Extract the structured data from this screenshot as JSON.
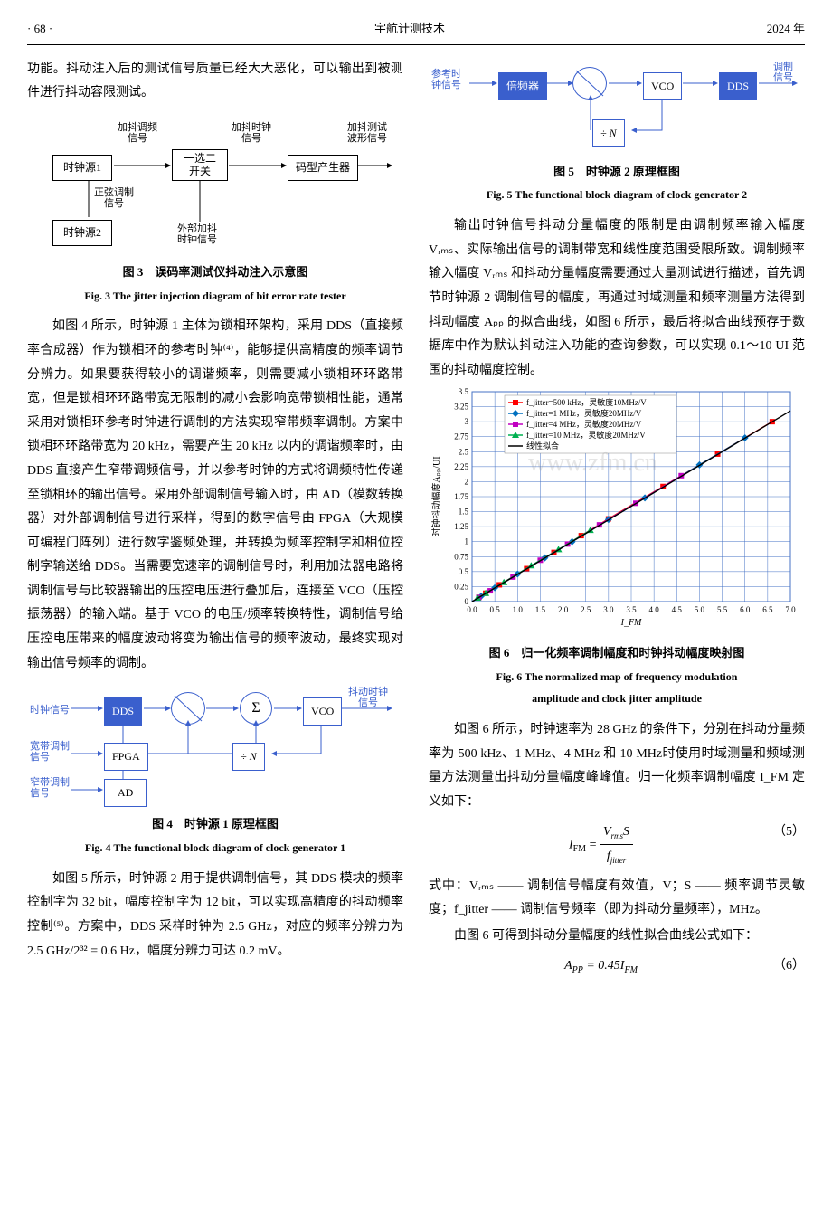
{
  "header": {
    "page": "· 68 ·",
    "journal": "宇航计测技术",
    "year": "2024 年"
  },
  "leftCol": {
    "p1": "功能。抖动注入后的测试信号质量已经大大恶化，可以输出到被测件进行抖动容限测试。",
    "fig3": {
      "boxes": {
        "clk1": "时钟源1",
        "switch": "一选二\n开关",
        "coder": "码型产生器",
        "clk2": "时钟源2"
      },
      "labels": {
        "l1": "加抖调频\n信号",
        "l2": "加抖时钟\n信号",
        "l3": "加抖测试\n波形信号",
        "l4": "正弦调制\n信号",
        "l5": "外部加抖\n时钟信号"
      },
      "cap_cn": "图 3　误码率测试仪抖动注入示意图",
      "cap_en": "Fig. 3  The jitter injection diagram of bit error rate tester"
    },
    "p2": "如图 4 所示，时钟源 1 主体为锁相环架构，采用 DDS（直接频率合成器）作为锁相环的参考时钟⁽⁴⁾，能够提供高精度的频率调节分辨力。如果要获得较小的调谐频率，则需要减小锁相环环路带宽，但是锁相环环路带宽无限制的减小会影响宽带锁相性能，通常采用对锁相环参考时钟进行调制的方法实现窄带频率调制。方案中锁相环环路带宽为 20 kHz，需要产生 20 kHz 以内的调谐频率时，由 DDS 直接产生窄带调频信号，并以参考时钟的方式将调频特性传递至锁相环的输出信号。采用外部调制信号输入时，由 AD（模数转换器）对外部调制信号进行采样，得到的数字信号由 FPGA（大规模可编程门阵列）进行数字鉴频处理，并转换为频率控制字和相位控制字输送给 DDS。当需要宽速率的调制信号时，利用加法器电路将调制信号与比较器输出的压控电压进行叠加后，连接至 VCO（压控振荡器）的输入端。基于 VCO 的电压/频率转换特性，调制信号给压控电压带来的幅度波动将变为输出信号的频率波动，最终实现对输出信号频率的调制。",
    "fig4": {
      "labels": {
        "clk": "时钟信号",
        "wb": "宽带调制\n信号",
        "nb": "窄带调制\n信号",
        "out": "抖动时钟\n信号"
      },
      "boxes": {
        "dds": "DDS",
        "fpga": "FPGA",
        "ad": "AD",
        "divn": "÷ N",
        "vco": "VCO",
        "sum": "Σ"
      },
      "cap_cn": "图 4　时钟源 1 原理框图",
      "cap_en": "Fig. 4  The functional block diagram of clock generator 1"
    },
    "p3": "如图 5 所示，时钟源 2 用于提供调制信号，其 DDS 模块的频率控制字为 32 bit，幅度控制字为 12 bit，可以实现高精度的抖动频率控制⁽⁵⁾。方案中，DDS 采样时钟为 2.5 GHz，对应的频率分辨力为 2.5 GHz/2³² = 0.6 Hz，幅度分辨力可达 0.2 mV。"
  },
  "rightCol": {
    "fig5": {
      "labels": {
        "ref": "参考时\n钟信号",
        "out": "调制\n信号"
      },
      "boxes": {
        "mult": "倍频器",
        "vco": "VCO",
        "dds": "DDS",
        "divn": "÷ N"
      },
      "cap_cn": "图 5　时钟源 2 原理框图",
      "cap_en": "Fig. 5  The functional block diagram of clock generator 2"
    },
    "p1": "输出时钟信号抖动分量幅度的限制是由调制频率输入幅度 Vᵣₘₛ、实际输出信号的调制带宽和线性度范围受限所致。调制频率输入幅度 Vᵣₘₛ 和抖动分量幅度需要通过大量测试进行描述，首先调节时钟源 2 调制信号的幅度，再通过时域测量和频率测量方法得到抖动幅度 Aₚₚ 的拟合曲线，如图 6 所示，最后将拟合曲线预存于数据库中作为默认抖动注入功能的查询参数，可以实现 0.1～10 UI 范围的抖动幅度控制。",
    "fig6": {
      "chart": {
        "type": "scatter-line",
        "xlabel": "I_FM",
        "ylabel": "时钟抖动幅度Aₚₚ/UI",
        "xlim": [
          0,
          7.0
        ],
        "ylim": [
          0,
          3.5
        ],
        "xtick_step": 0.5,
        "ytick_step": 0.25,
        "grid_color": "#4472c4",
        "background_color": "#ffffff",
        "plot_border_color": "#4472c4",
        "tick_fontsize": 9,
        "label_fontsize": 10,
        "series": [
          {
            "name": "f_jitter=500 kHz，灵敏度10MHz/V",
            "color": "#ff0000",
            "marker": "square",
            "points": [
              [
                0.15,
                0.07
              ],
              [
                0.3,
                0.14
              ],
              [
                0.6,
                0.28
              ],
              [
                1.2,
                0.55
              ],
              [
                1.8,
                0.82
              ],
              [
                2.4,
                1.1
              ],
              [
                3.0,
                1.38
              ],
              [
                4.2,
                1.92
              ],
              [
                5.4,
                2.46
              ],
              [
                6.6,
                3.0
              ]
            ]
          },
          {
            "name": "f_jitter=1 MHz，灵敏度20MHz/V",
            "color": "#0070c0",
            "marker": "diamond",
            "points": [
              [
                0.2,
                0.09
              ],
              [
                0.5,
                0.23
              ],
              [
                1.0,
                0.46
              ],
              [
                1.6,
                0.73
              ],
              [
                2.2,
                1.0
              ],
              [
                3.0,
                1.37
              ],
              [
                3.8,
                1.73
              ],
              [
                5.0,
                2.28
              ],
              [
                6.0,
                2.73
              ]
            ]
          },
          {
            "name": "f_jitter=4 MHz，灵敏度20MHz/V",
            "color": "#c000c0",
            "marker": "square",
            "points": [
              [
                0.15,
                0.07
              ],
              [
                0.4,
                0.18
              ],
              [
                0.9,
                0.41
              ],
              [
                1.5,
                0.69
              ],
              [
                2.1,
                0.96
              ],
              [
                2.8,
                1.28
              ],
              [
                3.6,
                1.64
              ],
              [
                4.6,
                2.1
              ]
            ]
          },
          {
            "name": "f_jitter=10 MHz，灵敏度20MHz/V",
            "color": "#00b050",
            "marker": "triangle",
            "points": [
              [
                0.12,
                0.06
              ],
              [
                0.3,
                0.14
              ],
              [
                0.7,
                0.32
              ],
              [
                1.3,
                0.6
              ],
              [
                1.9,
                0.87
              ],
              [
                2.6,
                1.19
              ]
            ]
          },
          {
            "name": "线性拟合",
            "color": "#000000",
            "marker": "none",
            "line": true,
            "points": [
              [
                0,
                0
              ],
              [
                7.0,
                3.18
              ]
            ]
          }
        ],
        "legend_pos": "top-left-inset",
        "legend_fontsize": 9
      },
      "watermark": "www.zfm.cn",
      "cap_cn": "图 6　归一化频率调制幅度和时钟抖动幅度映射图",
      "cap_en_l1": "Fig. 6  The normalized map of frequency modulation",
      "cap_en_l2": "amplitude and clock jitter amplitude"
    },
    "p2": "如图 6 所示，时钟速率为 28 GHz 的条件下，分别在抖动分量频率为 500 kHz、1 MHz、4 MHz 和 10 MHz时使用时域测量和频域测量方法测量出抖动分量幅度峰峰值。归一化频率调制幅度 I_FM 定义如下：",
    "eq5": {
      "tex": "I_FM = (Vᵣₘₛ S) / f_jitter",
      "num": "（5）"
    },
    "p3": "式中：Vᵣₘₛ —— 调制信号幅度有效值，V；S —— 频率调节灵敏度；f_jitter —— 调制信号频率（即为抖动分量频率），MHz。",
    "p4": "由图 6 可得到抖动分量幅度的线性拟合曲线公式如下：",
    "eq6": {
      "tex": "Aₚₚ = 0.45 I_FM",
      "num": "（6）"
    }
  }
}
